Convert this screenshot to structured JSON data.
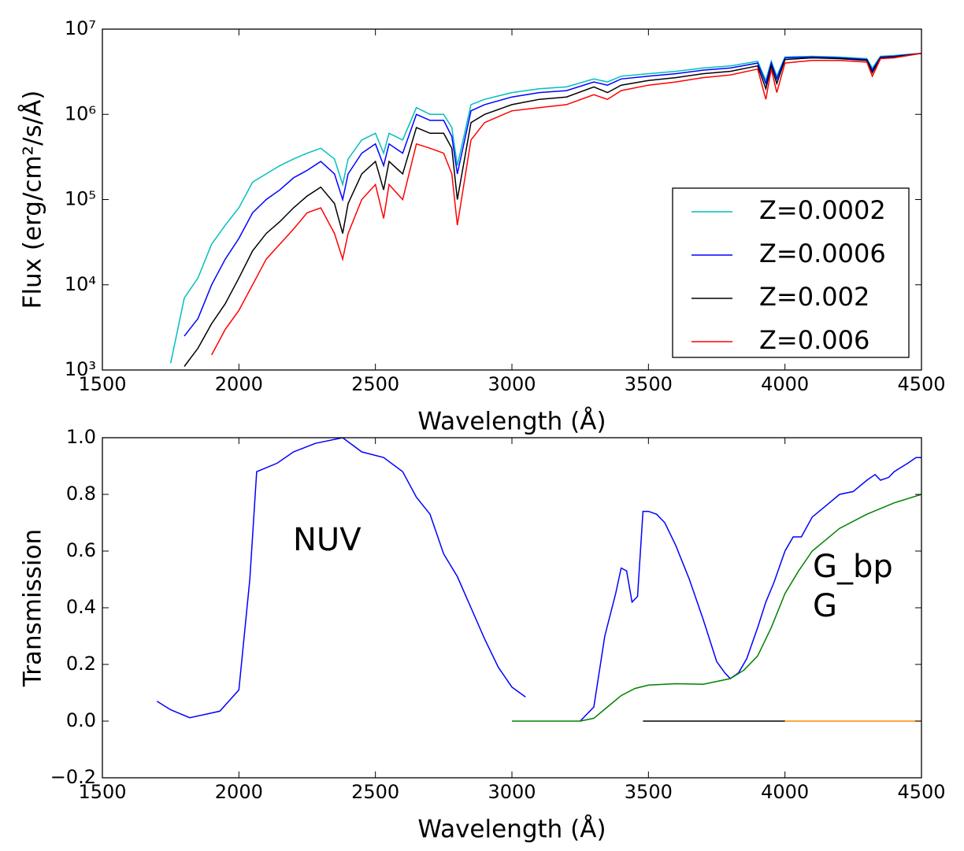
{
  "chart_data": [
    {
      "type": "line",
      "xlabel": "Wavelength (Å)",
      "ylabel": "Flux (erg/cm²/s/Å)",
      "log_y": true,
      "legend": "lower right",
      "xlim": [
        1500,
        4500
      ],
      "xticks": [
        1500,
        2000,
        2500,
        3000,
        3500,
        4000,
        4500
      ],
      "ylim": [
        1000,
        10000000
      ],
      "yticks": [
        {
          "value": 1000,
          "label": "10³"
        },
        {
          "value": 10000,
          "label": "10⁴"
        },
        {
          "value": 100000,
          "label": "10⁵"
        },
        {
          "value": 1000000,
          "label": "10⁶"
        },
        {
          "value": 10000000,
          "label": "10⁷"
        }
      ],
      "x": [
        1750,
        1800,
        1850,
        1900,
        1950,
        2000,
        2050,
        2100,
        2150,
        2200,
        2250,
        2300,
        2350,
        2380,
        2400,
        2450,
        2500,
        2530,
        2550,
        2600,
        2650,
        2700,
        2750,
        2780,
        2800,
        2850,
        2900,
        3000,
        3100,
        3200,
        3300,
        3350,
        3400,
        3500,
        3600,
        3700,
        3800,
        3900,
        3930,
        3950,
        3970,
        4000,
        4100,
        4200,
        4300,
        4320,
        4350,
        4400,
        4500
      ],
      "series": [
        {
          "name": "Z=0.0002",
          "color": "#00bfbf",
          "values": [
            1200,
            7000,
            12000,
            30000,
            50000,
            80000,
            160000,
            200000,
            250000,
            300000,
            350000,
            400000,
            300000,
            150000,
            300000,
            500000,
            600000,
            350000,
            600000,
            500000,
            1200000,
            1000000,
            1000000,
            700000,
            250000,
            1300000,
            1500000,
            1800000,
            2000000,
            2100000,
            2600000,
            2400000,
            2800000,
            3000000,
            3200000,
            3500000,
            3700000,
            4200000,
            2500000,
            4200000,
            2800000,
            4700000,
            4800000,
            4700000,
            4500000,
            3500000,
            4800000,
            4900000,
            5200000
          ]
        },
        {
          "name": "Z=0.0006",
          "color": "#0000ff",
          "values": [
            null,
            2500,
            4000,
            10000,
            20000,
            35000,
            70000,
            100000,
            130000,
            180000,
            220000,
            280000,
            200000,
            100000,
            200000,
            350000,
            450000,
            250000,
            450000,
            350000,
            1000000,
            850000,
            850000,
            550000,
            200000,
            1100000,
            1300000,
            1600000,
            1800000,
            1900000,
            2400000,
            2200000,
            2600000,
            2800000,
            3000000,
            3300000,
            3500000,
            4000000,
            2300000,
            4000000,
            2600000,
            4600000,
            4700000,
            4600000,
            4400000,
            3300000,
            4700000,
            4800000,
            5200000
          ]
        },
        {
          "name": "Z=0.002",
          "color": "#000000",
          "values": [
            null,
            1100,
            1800,
            3500,
            6000,
            12000,
            25000,
            40000,
            55000,
            80000,
            110000,
            140000,
            90000,
            40000,
            90000,
            200000,
            280000,
            130000,
            280000,
            200000,
            700000,
            600000,
            600000,
            400000,
            100000,
            800000,
            1000000,
            1300000,
            1500000,
            1600000,
            2100000,
            1800000,
            2200000,
            2500000,
            2700000,
            3000000,
            3200000,
            3700000,
            2000000,
            3700000,
            2300000,
            4400000,
            4600000,
            4500000,
            4300000,
            3100000,
            4600000,
            4700000,
            5200000
          ]
        },
        {
          "name": "Z=0.006",
          "color": "#ff0000",
          "values": [
            null,
            null,
            null,
            1500,
            3000,
            5000,
            10000,
            20000,
            30000,
            45000,
            70000,
            80000,
            40000,
            20000,
            40000,
            100000,
            150000,
            60000,
            150000,
            100000,
            450000,
            400000,
            350000,
            200000,
            50000,
            500000,
            800000,
            1100000,
            1200000,
            1300000,
            1700000,
            1500000,
            1900000,
            2200000,
            2400000,
            2700000,
            2900000,
            3400000,
            1500000,
            3400000,
            1800000,
            4000000,
            4300000,
            4300000,
            4100000,
            2800000,
            4500000,
            4600000,
            5200000
          ]
        }
      ]
    },
    {
      "type": "line",
      "xlabel": "Wavelength (Å)",
      "ylabel": "Transmission",
      "xlim": [
        1500,
        4500
      ],
      "xticks": [
        1500,
        2000,
        2500,
        3000,
        3500,
        4000,
        4500
      ],
      "ylim": [
        -0.2,
        1.0
      ],
      "yticks": [
        {
          "value": -0.2,
          "label": "−0.2"
        },
        {
          "value": 0,
          "label": "0.0"
        },
        0.2,
        0.4,
        0.6,
        0.8,
        {
          "value": 1.0,
          "label": "1.0"
        }
      ],
      "annotations": [
        {
          "text": "NUV",
          "color": "#0000ff"
        },
        {
          "text": "G_bp",
          "color": "#0000ff"
        },
        {
          "text": "G",
          "color": "#008000"
        }
      ],
      "series": [
        {
          "color": "#0000ff",
          "x": [
            1700,
            1750,
            1820,
            1930,
            2000,
            2040,
            2065,
            2140,
            2200,
            2280,
            2380,
            2450,
            2530,
            2600,
            2650,
            2700,
            2750,
            2800,
            2850,
            2900,
            2950,
            3000,
            3050
          ],
          "values": [
            0.07,
            0.04,
            0.012,
            0.035,
            0.11,
            0.5,
            0.88,
            0.91,
            0.95,
            0.98,
            1.0,
            0.95,
            0.93,
            0.88,
            0.79,
            0.73,
            0.59,
            0.51,
            0.4,
            0.29,
            0.19,
            0.12,
            0.085
          ]
        },
        {
          "color": "#0000ff",
          "x": [
            3250,
            3300,
            3340,
            3380,
            3400,
            3420,
            3440,
            3460,
            3480,
            3500,
            3530,
            3560,
            3600,
            3650,
            3700,
            3750,
            3780,
            3800,
            3830,
            3860,
            3900,
            3930,
            3960,
            4000,
            4030,
            4060,
            4100,
            4150,
            4200,
            4250,
            4300,
            4330,
            4350,
            4380,
            4400,
            4450,
            4480,
            4500
          ],
          "values": [
            0,
            0.05,
            0.3,
            0.45,
            0.54,
            0.53,
            0.42,
            0.44,
            0.74,
            0.74,
            0.73,
            0.7,
            0.62,
            0.5,
            0.36,
            0.21,
            0.17,
            0.15,
            0.17,
            0.22,
            0.33,
            0.42,
            0.49,
            0.6,
            0.65,
            0.65,
            0.72,
            0.76,
            0.8,
            0.81,
            0.85,
            0.87,
            0.85,
            0.86,
            0.88,
            0.91,
            0.93,
            0.93
          ]
        },
        {
          "color": "#008000",
          "x": [
            3000,
            3250,
            3300,
            3350,
            3400,
            3450,
            3500,
            3600,
            3700,
            3800,
            3850,
            3900,
            3950,
            4000,
            4050,
            4100,
            4200,
            4300,
            4400,
            4500
          ],
          "values": [
            0,
            0,
            0.01,
            0.05,
            0.09,
            0.115,
            0.127,
            0.132,
            0.13,
            0.15,
            0.18,
            0.23,
            0.33,
            0.45,
            0.53,
            0.6,
            0.68,
            0.73,
            0.77,
            0.8
          ]
        },
        {
          "color": "#000000",
          "x": [
            3480,
            4000
          ],
          "values": [
            0,
            0
          ]
        },
        {
          "color": "#ff8c00",
          "x": [
            4000,
            4500
          ],
          "values": [
            0,
            0
          ]
        }
      ]
    }
  ]
}
